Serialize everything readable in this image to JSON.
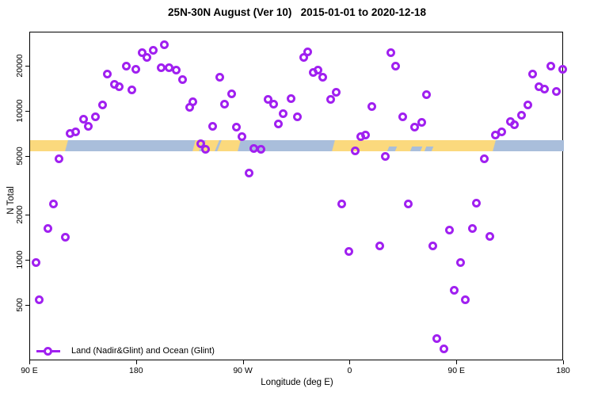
{
  "title": "25N-30N August (Ver 10)   2015-01-01 to 2020-12-18",
  "colors": {
    "marker": "#A020F0",
    "land_band": "#FBD97D",
    "ocean_band": "#A9BEDB",
    "axis": "#000000"
  },
  "chart_data": {
    "type": "scatter",
    "title": "25N-30N August (Ver 10)   2015-01-01 to 2020-12-18",
    "xlabel": "Longitude (deg E)",
    "ylabel": "N Total",
    "x_axis": {
      "range": [
        90,
        540
      ],
      "ticks": [
        {
          "value": 90,
          "label": "90 E"
        },
        {
          "value": 180,
          "label": "180"
        },
        {
          "value": 270,
          "label": "90 W"
        },
        {
          "value": 360,
          "label": "0"
        },
        {
          "value": 450,
          "label": "90 E"
        },
        {
          "value": 540,
          "label": "180"
        }
      ]
    },
    "y_axis": {
      "scale": "log",
      "range": [
        210,
        34000
      ],
      "ticks": [
        {
          "value": 500,
          "label": "500"
        },
        {
          "value": 1000,
          "label": "1000"
        },
        {
          "value": 2000,
          "label": "2000"
        },
        {
          "value": 5000,
          "label": "5000"
        },
        {
          "value": 10000,
          "label": "10000"
        },
        {
          "value": 20000,
          "label": "20000"
        }
      ]
    },
    "legend": [
      {
        "label": "Land (Nadir&Glint) and Ocean (Glint)",
        "marker": "open-circle-with-line",
        "color": "#A020F0"
      }
    ],
    "surface_band": {
      "top_value": 6440,
      "bottom_value": 5420,
      "land_color": "#FBD97D",
      "ocean_color": "#A9BEDB",
      "segments": [
        {
          "from": 90,
          "to": 121,
          "type": "land"
        },
        {
          "from": 121,
          "to": 228,
          "type": "ocean"
        },
        {
          "from": 228,
          "to": 266,
          "type": "land"
        },
        {
          "from": 266,
          "to": 346,
          "type": "ocean"
        },
        {
          "from": 346,
          "to": 481,
          "type": "land"
        },
        {
          "from": 481,
          "to": 540,
          "type": "ocean"
        }
      ],
      "ocean_streaks_over_land": [
        {
          "from": 234.5,
          "to": 236.5,
          "height": "full"
        },
        {
          "from": 247.5,
          "to": 249.8,
          "height": "full"
        },
        {
          "from": 392,
          "to": 399,
          "height": "bottom"
        },
        {
          "from": 411,
          "to": 420,
          "height": "bottom"
        },
        {
          "from": 423,
          "to": 429,
          "height": "bottom"
        }
      ]
    },
    "points": [
      [
        94.7,
        964
      ],
      [
        98.0,
        548
      ],
      [
        104.7,
        1650
      ],
      [
        109.4,
        2415
      ],
      [
        114.7,
        4800
      ],
      [
        120.0,
        1430
      ],
      [
        123.4,
        7180
      ],
      [
        128.7,
        7360
      ],
      [
        135.4,
        8850
      ],
      [
        139.4,
        8020
      ],
      [
        145.4,
        9290
      ],
      [
        151.4,
        11040
      ],
      [
        155.4,
        18000
      ],
      [
        161.4,
        15350
      ],
      [
        164.8,
        14790
      ],
      [
        170.8,
        20100
      ],
      [
        176.1,
        13930
      ],
      [
        178.8,
        19140
      ],
      [
        184.8,
        24770
      ],
      [
        188.8,
        23280
      ],
      [
        193.5,
        25700
      ],
      [
        200.2,
        19630
      ],
      [
        203.5,
        28310
      ],
      [
        207.5,
        19630
      ],
      [
        213.5,
        18920
      ],
      [
        218.2,
        16330
      ],
      [
        224.2,
        10760
      ],
      [
        227.5,
        11590
      ],
      [
        233.6,
        6120
      ],
      [
        238.2,
        5620
      ],
      [
        243.6,
        8020
      ],
      [
        249.6,
        17140
      ],
      [
        254.2,
        11300
      ],
      [
        259.6,
        13250
      ],
      [
        263.6,
        7920
      ],
      [
        268.9,
        6760
      ],
      [
        274.9,
        3890
      ],
      [
        278.9,
        5690
      ],
      [
        284.3,
        5620
      ],
      [
        290.3,
        12020
      ],
      [
        295.6,
        11300
      ],
      [
        299.6,
        8320
      ],
      [
        303.0,
        9640
      ],
      [
        310.3,
        12300
      ],
      [
        315.6,
        9290
      ],
      [
        321.0,
        23000
      ],
      [
        324.3,
        25060
      ],
      [
        329.0,
        18230
      ],
      [
        333.0,
        18920
      ],
      [
        337.0,
        16940
      ],
      [
        343.7,
        12160
      ],
      [
        348.3,
        13420
      ],
      [
        353.0,
        2390
      ],
      [
        358.4,
        1145
      ],
      [
        364.4,
        5480
      ],
      [
        369.0,
        6760
      ],
      [
        373.0,
        7010
      ],
      [
        378.4,
        10890
      ],
      [
        385.0,
        1260
      ],
      [
        389.7,
        4980
      ],
      [
        394.4,
        24770
      ],
      [
        398.4,
        20100
      ],
      [
        404.4,
        9290
      ],
      [
        409.1,
        2390
      ],
      [
        414.4,
        7830
      ],
      [
        420.4,
        8520
      ],
      [
        424.4,
        13090
      ],
      [
        429.8,
        1250
      ],
      [
        433.1,
        301
      ],
      [
        439.1,
        254
      ],
      [
        443.8,
        1610
      ],
      [
        447.8,
        628
      ],
      [
        453.1,
        975
      ],
      [
        457.1,
        548
      ],
      [
        463.1,
        1650
      ],
      [
        466.5,
        2440
      ],
      [
        473.1,
        4850
      ],
      [
        477.8,
        1445
      ],
      [
        482.5,
        7010
      ],
      [
        487.8,
        7280
      ],
      [
        495.1,
        8630
      ],
      [
        498.5,
        8220
      ],
      [
        504.5,
        9520
      ],
      [
        509.8,
        11040
      ],
      [
        513.8,
        18000
      ],
      [
        519.1,
        14790
      ],
      [
        523.8,
        14260
      ],
      [
        529.1,
        20100
      ],
      [
        533.8,
        13740
      ],
      [
        539.1,
        19140
      ]
    ]
  }
}
